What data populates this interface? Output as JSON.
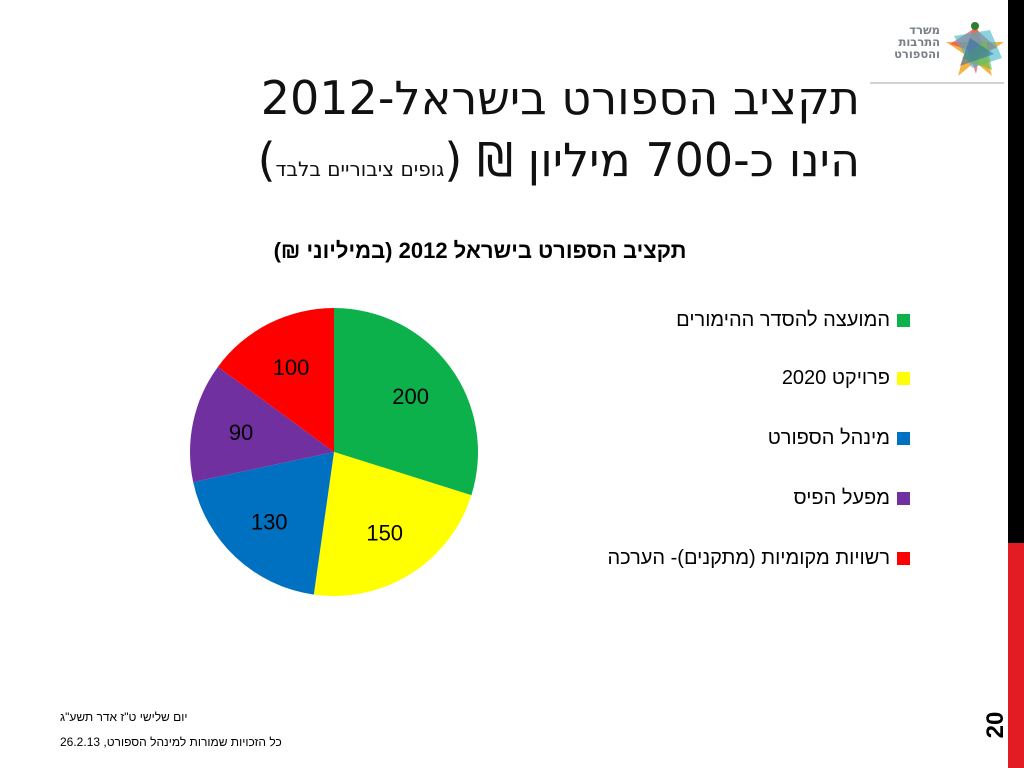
{
  "logo": {
    "lines": [
      "משרד",
      "התרבות",
      "והספורט"
    ]
  },
  "slide": {
    "title_line1": "תקציב הספורט בישראל-2012",
    "title_line2_main": "הינו כ-700 מיליון ₪ (",
    "title_line2_small": "גופים ציבוריים בלבד",
    "title_line2_close": ")"
  },
  "footer": {
    "date_he": "יום שלישי ט\"ז אדר תשע\"ג",
    "copyright": "כל הזכויות שמורות למינהל הספורט, 26.2.13"
  },
  "page_number": "20",
  "colors": {
    "sidebar_black": "#000000",
    "sidebar_red": "#e31b23"
  },
  "chart_data": {
    "type": "pie",
    "title": "תקציב הספורט בישראל 2012 (במיליוני ₪)",
    "categories": [
      "המועצה להסדר ההימורים",
      "פרויקט 2020",
      "מינהל הספורט",
      "מפעל הפיס",
      "רשויות מקומיות (מתקנים)- הערכה"
    ],
    "values": [
      200,
      150,
      130,
      90,
      100
    ],
    "colors": [
      "#0db14b",
      "#ffff00",
      "#0070c0",
      "#7030a0",
      "#ff0000"
    ],
    "legend_position": "right",
    "data_labels": [
      "200",
      "150",
      "130",
      "90",
      "100"
    ]
  }
}
